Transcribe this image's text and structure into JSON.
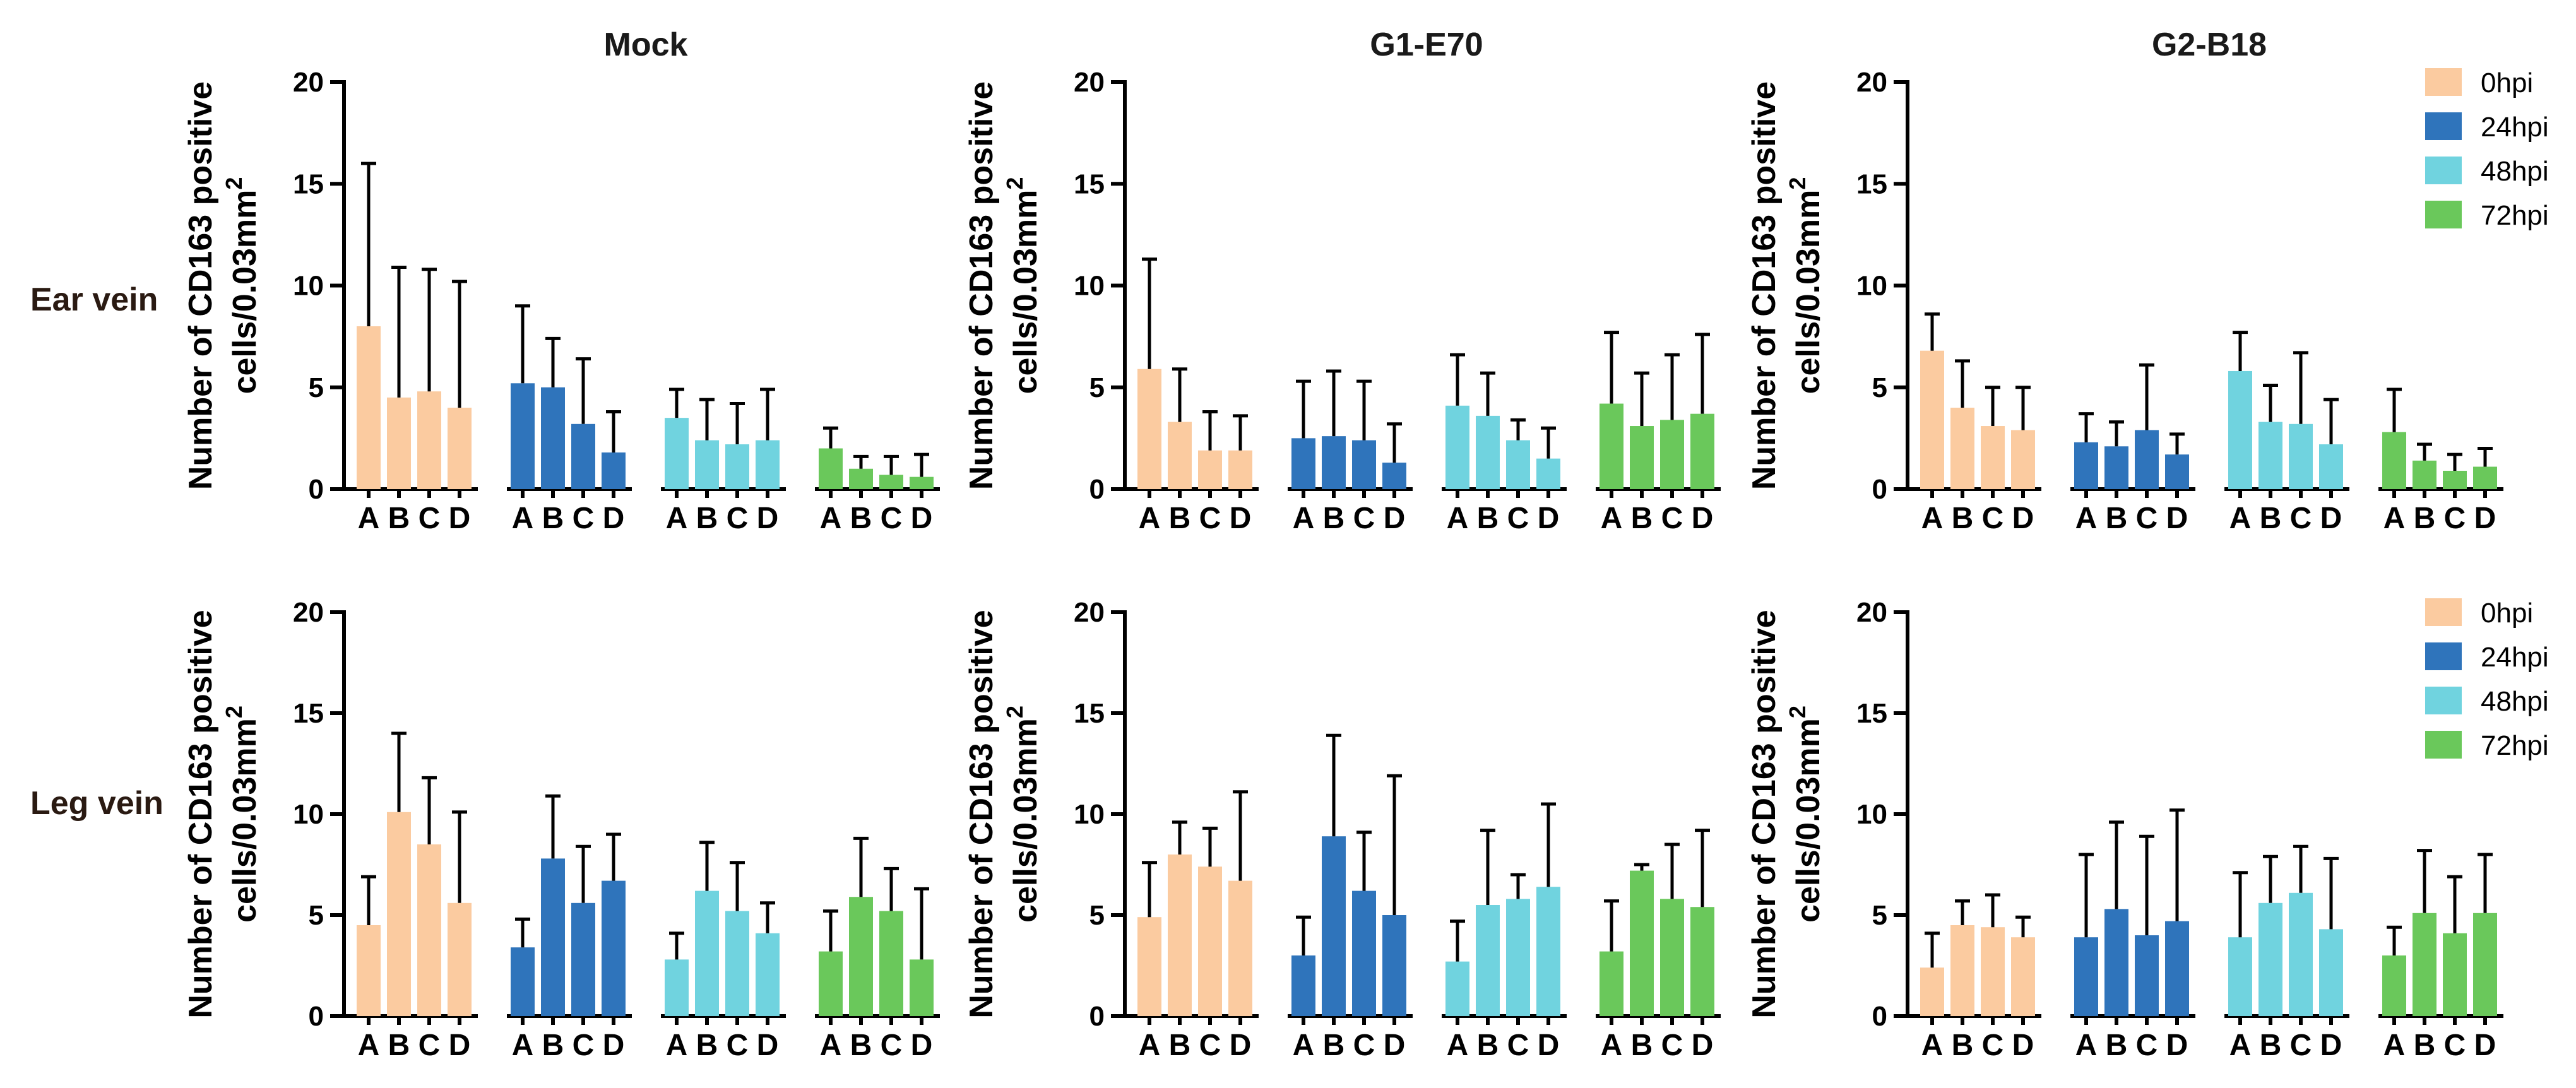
{
  "figure": {
    "row_labels": [
      "Ear vein",
      "Leg vein"
    ],
    "column_titles": [
      "Mock",
      "G1-E70",
      "G2-B18"
    ],
    "ylabel_line1": "Number of CD163 positive",
    "ylabel_line2": "cells/0.03mm",
    "ylabel_sup": "2"
  },
  "colors": {
    "0hpi": "#fbcba0",
    "24hpi": "#2f74bb",
    "48hpi": "#70d3df",
    "72hpi": "#6ac85b"
  },
  "chart_data": [
    {
      "id": "ear-mock",
      "type": "bar",
      "row": "Ear vein",
      "title": "Mock",
      "ylabel": "Number of CD163 positive cells/0.03mm2",
      "ylim": [
        0,
        20
      ],
      "yticks": [
        0,
        5,
        10,
        15,
        20
      ],
      "groups": [
        "0hpi",
        "24hpi",
        "48hpi",
        "72hpi"
      ],
      "categories": [
        "A",
        "B",
        "C",
        "D"
      ],
      "series": [
        {
          "name": "0hpi",
          "values": [
            8.0,
            4.5,
            4.8,
            4.0
          ],
          "errors": [
            8.0,
            6.4,
            6.0,
            6.2
          ]
        },
        {
          "name": "24hpi",
          "values": [
            5.2,
            5.0,
            3.2,
            1.8
          ],
          "errors": [
            3.8,
            2.4,
            3.2,
            2.0
          ]
        },
        {
          "name": "48hpi",
          "values": [
            3.5,
            2.4,
            2.2,
            2.4
          ],
          "errors": [
            1.4,
            2.0,
            2.0,
            2.5
          ]
        },
        {
          "name": "72hpi",
          "values": [
            2.0,
            1.0,
            0.7,
            0.6
          ],
          "errors": [
            1.0,
            0.6,
            0.9,
            1.1
          ]
        }
      ]
    },
    {
      "id": "ear-g1",
      "type": "bar",
      "row": "Ear vein",
      "title": "G1-E70",
      "ylabel": "Number of CD163 positive cells/0.03mm2",
      "ylim": [
        0,
        20
      ],
      "yticks": [
        0,
        5,
        10,
        15,
        20
      ],
      "groups": [
        "0hpi",
        "24hpi",
        "48hpi",
        "72hpi"
      ],
      "categories": [
        "A",
        "B",
        "C",
        "D"
      ],
      "series": [
        {
          "name": "0hpi",
          "values": [
            5.9,
            3.3,
            1.9,
            1.9
          ],
          "errors": [
            5.4,
            2.6,
            1.9,
            1.7
          ]
        },
        {
          "name": "24hpi",
          "values": [
            2.5,
            2.6,
            2.4,
            1.3
          ],
          "errors": [
            2.8,
            3.2,
            2.9,
            1.9
          ]
        },
        {
          "name": "48hpi",
          "values": [
            4.1,
            3.6,
            2.4,
            1.5
          ],
          "errors": [
            2.5,
            2.1,
            1.0,
            1.5
          ]
        },
        {
          "name": "72hpi",
          "values": [
            4.2,
            3.1,
            3.4,
            3.7
          ],
          "errors": [
            3.5,
            2.6,
            3.2,
            3.9
          ]
        }
      ]
    },
    {
      "id": "ear-g2",
      "type": "bar",
      "row": "Ear vein",
      "title": "G2-B18",
      "ylabel": "Number of CD163 positive cells/0.03mm2",
      "ylim": [
        0,
        20
      ],
      "yticks": [
        0,
        5,
        10,
        15,
        20
      ],
      "groups": [
        "0hpi",
        "24hpi",
        "48hpi",
        "72hpi"
      ],
      "categories": [
        "A",
        "B",
        "C",
        "D"
      ],
      "legend": [
        "0hpi",
        "24hpi",
        "48hpi",
        "72hpi"
      ],
      "legend_position": "top-right",
      "series": [
        {
          "name": "0hpi",
          "values": [
            6.8,
            4.0,
            3.1,
            2.9
          ],
          "errors": [
            1.8,
            2.3,
            1.9,
            2.1
          ]
        },
        {
          "name": "24hpi",
          "values": [
            2.3,
            2.1,
            2.9,
            1.7
          ],
          "errors": [
            1.4,
            1.2,
            3.2,
            1.0
          ]
        },
        {
          "name": "48hpi",
          "values": [
            5.8,
            3.3,
            3.2,
            2.2
          ],
          "errors": [
            1.9,
            1.8,
            3.5,
            2.2
          ]
        },
        {
          "name": "72hpi",
          "values": [
            2.8,
            1.4,
            0.9,
            1.1
          ],
          "errors": [
            2.1,
            0.8,
            0.8,
            0.9
          ]
        }
      ]
    },
    {
      "id": "leg-mock",
      "type": "bar",
      "row": "Leg vein",
      "title": "Mock",
      "ylabel": "Number of CD163 positive cells/0.03mm2",
      "ylim": [
        0,
        20
      ],
      "yticks": [
        0,
        5,
        10,
        15,
        20
      ],
      "groups": [
        "0hpi",
        "24hpi",
        "48hpi",
        "72hpi"
      ],
      "categories": [
        "A",
        "B",
        "C",
        "D"
      ],
      "series": [
        {
          "name": "0hpi",
          "values": [
            4.5,
            10.1,
            8.5,
            5.6
          ],
          "errors": [
            2.4,
            3.9,
            3.3,
            4.5
          ]
        },
        {
          "name": "24hpi",
          "values": [
            3.4,
            7.8,
            5.6,
            6.7
          ],
          "errors": [
            1.4,
            3.1,
            2.8,
            2.3
          ]
        },
        {
          "name": "48hpi",
          "values": [
            2.8,
            6.2,
            5.2,
            4.1
          ],
          "errors": [
            1.3,
            2.4,
            2.4,
            1.5
          ]
        },
        {
          "name": "72hpi",
          "values": [
            3.2,
            5.9,
            5.2,
            2.8
          ],
          "errors": [
            2.0,
            2.9,
            2.1,
            3.5
          ]
        }
      ]
    },
    {
      "id": "leg-g1",
      "type": "bar",
      "row": "Leg vein",
      "title": "G1-E70",
      "ylabel": "Number of CD163 positive cells/0.03mm2",
      "ylim": [
        0,
        20
      ],
      "yticks": [
        0,
        5,
        10,
        15,
        20
      ],
      "groups": [
        "0hpi",
        "24hpi",
        "48hpi",
        "72hpi"
      ],
      "categories": [
        "A",
        "B",
        "C",
        "D"
      ],
      "series": [
        {
          "name": "0hpi",
          "values": [
            4.9,
            8.0,
            7.4,
            6.7
          ],
          "errors": [
            2.7,
            1.6,
            1.9,
            4.4
          ]
        },
        {
          "name": "24hpi",
          "values": [
            3.0,
            8.9,
            6.2,
            5.0
          ],
          "errors": [
            1.9,
            5.0,
            2.9,
            6.9
          ]
        },
        {
          "name": "48hpi",
          "values": [
            2.7,
            5.5,
            5.8,
            6.4
          ],
          "errors": [
            2.0,
            3.7,
            1.2,
            4.1
          ]
        },
        {
          "name": "72hpi",
          "values": [
            3.2,
            7.2,
            5.8,
            5.4
          ],
          "errors": [
            2.5,
            0.3,
            2.7,
            3.8
          ]
        }
      ]
    },
    {
      "id": "leg-g2",
      "type": "bar",
      "row": "Leg vein",
      "title": "",
      "ylabel": "Number of CD163 positive cells/0.03mm2",
      "ylim": [
        0,
        20
      ],
      "yticks": [
        0,
        5,
        10,
        15,
        20
      ],
      "groups": [
        "0hpi",
        "24hpi",
        "48hpi",
        "72hpi"
      ],
      "categories": [
        "A",
        "B",
        "C",
        "D"
      ],
      "legend": [
        "0hpi",
        "24hpi",
        "48hpi",
        "72hpi"
      ],
      "legend_position": "top-right",
      "series": [
        {
          "name": "0hpi",
          "values": [
            2.4,
            4.5,
            4.4,
            3.9
          ],
          "errors": [
            1.7,
            1.2,
            1.6,
            1.0
          ]
        },
        {
          "name": "24hpi",
          "values": [
            3.9,
            5.3,
            4.0,
            4.7
          ],
          "errors": [
            4.1,
            4.3,
            4.9,
            5.5
          ]
        },
        {
          "name": "48hpi",
          "values": [
            3.9,
            5.6,
            6.1,
            4.3
          ],
          "errors": [
            3.2,
            2.3,
            2.3,
            3.5
          ]
        },
        {
          "name": "72hpi",
          "values": [
            3.0,
            5.1,
            4.1,
            5.1
          ],
          "errors": [
            1.4,
            3.1,
            2.8,
            2.9
          ]
        }
      ]
    }
  ]
}
